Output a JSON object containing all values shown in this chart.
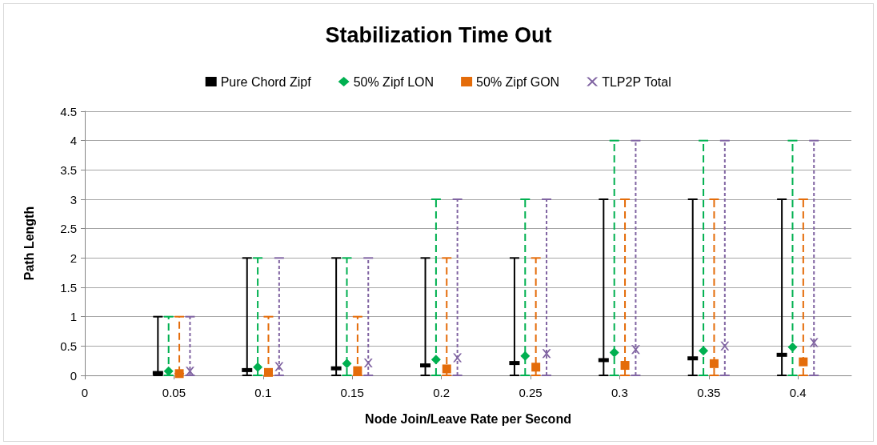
{
  "chart_data": {
    "type": "scatter",
    "title": "Stabilization Time Out",
    "xlabel": "Node Join/Leave Rate per Second",
    "ylabel": "Path Length",
    "xlim": [
      0,
      0.43
    ],
    "xticks": [
      0,
      0.05,
      0.1,
      0.15,
      0.2,
      0.25,
      0.3,
      0.35,
      0.4
    ],
    "ylim": [
      0,
      4.5
    ],
    "yticks": [
      0,
      0.5,
      1,
      1.5,
      2,
      2.5,
      3,
      3.5,
      4,
      4.5
    ],
    "grid": "y",
    "legend": "top",
    "series": [
      {
        "name": "Pure Chord Zipf",
        "color": "#000000",
        "line_style": "solid",
        "x": [
          0.041,
          0.091,
          0.141,
          0.191,
          0.241,
          0.291,
          0.341,
          0.391
        ],
        "values": [
          0.04,
          0.09,
          0.12,
          0.17,
          0.21,
          0.26,
          0.29,
          0.35
        ],
        "errors": [
          [
            0,
            1
          ],
          [
            0,
            2
          ],
          [
            0,
            2
          ],
          [
            0,
            2
          ],
          [
            0,
            2
          ],
          [
            0,
            3
          ],
          [
            0,
            3
          ],
          [
            0,
            3
          ]
        ]
      },
      {
        "name": "50% Zipf LON",
        "color": "#00b050",
        "marker": "diamond",
        "line_style": "dashed",
        "x": [
          0.047,
          0.097,
          0.147,
          0.197,
          0.247,
          0.297,
          0.347,
          0.397
        ],
        "values": [
          0.07,
          0.14,
          0.2,
          0.27,
          0.33,
          0.39,
          0.42,
          0.48
        ],
        "errors": [
          [
            0,
            1
          ],
          [
            0,
            2
          ],
          [
            0,
            2
          ],
          [
            0,
            3
          ],
          [
            0,
            3
          ],
          [
            0,
            4
          ],
          [
            0,
            4
          ],
          [
            0,
            4
          ]
        ]
      },
      {
        "name": "50% Zipf GON",
        "color": "#e46c0a",
        "marker": "square",
        "line_style": "dashed",
        "x": [
          0.053,
          0.103,
          0.153,
          0.203,
          0.253,
          0.303,
          0.353,
          0.403
        ],
        "values": [
          0.03,
          0.05,
          0.08,
          0.11,
          0.14,
          0.17,
          0.2,
          0.23
        ],
        "errors": [
          [
            0.03,
            1
          ],
          [
            0,
            1
          ],
          [
            0,
            1
          ],
          [
            0,
            2
          ],
          [
            0,
            2
          ],
          [
            0,
            3
          ],
          [
            0,
            3
          ],
          [
            0,
            3
          ]
        ]
      },
      {
        "name": "TLP2P Total",
        "color": "#8064a2",
        "marker": "cross",
        "line_style": "dotted",
        "x": [
          0.059,
          0.109,
          0.159,
          0.209,
          0.259,
          0.309,
          0.359,
          0.409
        ],
        "values": [
          0.07,
          0.15,
          0.21,
          0.3,
          0.37,
          0.44,
          0.5,
          0.56
        ],
        "errors": [
          [
            0,
            1
          ],
          [
            0,
            2
          ],
          [
            0,
            2
          ],
          [
            0,
            3
          ],
          [
            0,
            3
          ],
          [
            0,
            4
          ],
          [
            0,
            4
          ],
          [
            0,
            4
          ]
        ]
      }
    ]
  }
}
